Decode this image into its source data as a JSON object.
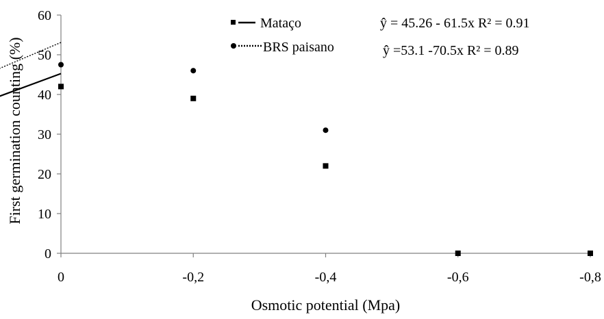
{
  "chart_data": {
    "type": "scatter",
    "xlabel": "Osmotic potential (Mpa)",
    "ylabel": "First germination counting (%)",
    "xlim": [
      0,
      -0.8
    ],
    "ylim": [
      0,
      60
    ],
    "x_ticks": [
      0,
      -0.2,
      -0.4,
      -0.6,
      -0.8
    ],
    "x_tick_labels": [
      "0",
      "-0,2",
      "-0,4",
      "-0,6",
      "-0,8"
    ],
    "y_ticks": [
      0,
      10,
      20,
      30,
      40,
      50,
      60
    ],
    "y_tick_labels": [
      "0",
      "10",
      "20",
      "30",
      "40",
      "50",
      "60"
    ],
    "grid": false,
    "legend_position": "top-center",
    "series": [
      {
        "name": "Mataço",
        "marker": "square",
        "line_style": "solid",
        "color": "#000000",
        "x": [
          0,
          -0.2,
          -0.4,
          -0.6,
          -0.8
        ],
        "y": [
          42,
          39,
          22,
          0,
          0
        ],
        "equation": "ŷ = 45.26 - 61.5x  R² = 0.91",
        "fit": {
          "intercept": 45.26,
          "slope": -61.5
        }
      },
      {
        "name": "BRS paisano",
        "marker": "circle",
        "line_style": "dotted",
        "color": "#000000",
        "x": [
          0,
          -0.2,
          -0.4
        ],
        "y": [
          47.5,
          46,
          31
        ],
        "equation": "ŷ =53.1 -70.5x  R² = 0.89",
        "fit": {
          "intercept": 53.1,
          "slope": -70.5
        }
      }
    ]
  }
}
